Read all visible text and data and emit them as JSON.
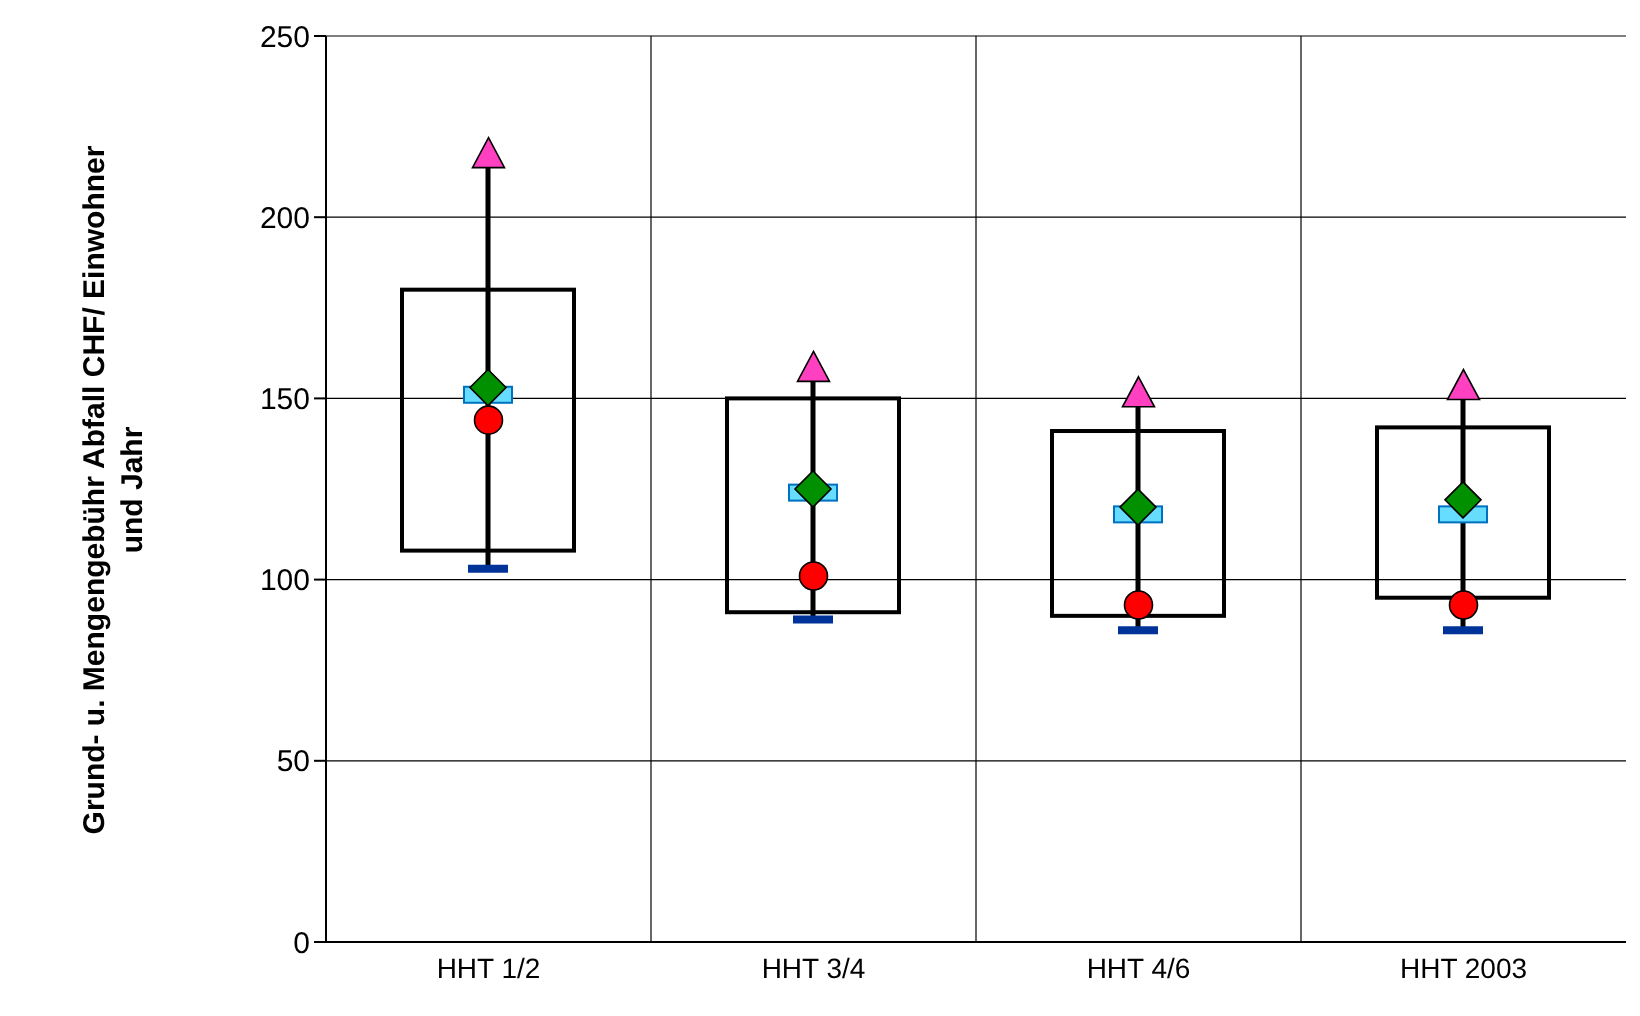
{
  "chart_data": {
    "type": "box",
    "ylabel": "Grund- u. Mengengebühr Abfall CHF/ Einwohner und Jahr",
    "categories": [
      "HHT 1/2",
      "HHT 3/4",
      "HHT 4/6",
      "HHT 2003"
    ],
    "ylim": [
      0,
      250
    ],
    "yticks": [
      0,
      50,
      100,
      150,
      200,
      250
    ],
    "grid": true,
    "series": [
      {
        "color": "#000000",
        "boxes": [
          {
            "low": 103,
            "q1": 108,
            "median": 151,
            "q3": 180,
            "high": 217,
            "mean": 153
          },
          {
            "low": 89,
            "q1": 91,
            "median": 124,
            "q3": 150,
            "high": 158,
            "mean": 125
          },
          {
            "low": 86,
            "q1": 90,
            "median": 118,
            "q3": 141,
            "high": 151,
            "mean": 120
          },
          {
            "low": 86,
            "q1": 95,
            "median": 118,
            "q3": 142,
            "high": 153,
            "mean": 122
          }
        ]
      },
      {
        "type": "scatter",
        "color": "#ff0000",
        "marker": "circle",
        "x": [
          "HHT 1/2",
          "HHT 3/4",
          "HHT 4/6",
          "HHT 2003"
        ],
        "values": [
          144,
          101,
          93,
          93
        ]
      },
      {
        "type": "scatter",
        "color": "#ff40c0",
        "marker": "triangle",
        "x": [
          "HHT 1/2",
          "HHT 3/4",
          "HHT 4/6",
          "HHT 2003"
        ],
        "values": [
          217,
          158,
          151,
          153
        ]
      }
    ]
  }
}
